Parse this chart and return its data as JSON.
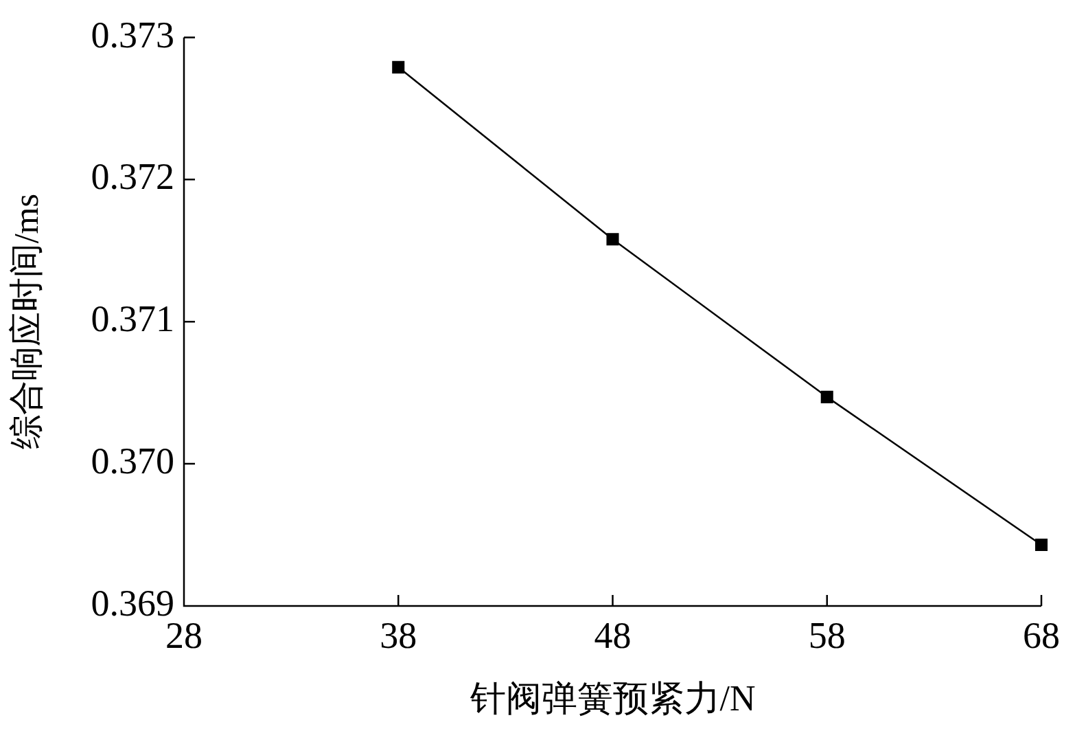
{
  "chart_data": {
    "type": "line",
    "xlabel": "针阀弹簧预紧力/N",
    "ylabel": "综合响应时间/ms",
    "x": [
      38,
      48,
      58,
      68
    ],
    "series": [
      {
        "color": "#000000",
        "values": [
          0.37279,
          0.37158,
          0.37047,
          0.36943
        ]
      }
    ],
    "xlim": [
      28,
      68
    ],
    "xticks": [
      28,
      38,
      48,
      58,
      68
    ],
    "ylim": [
      0.369,
      0.373
    ],
    "yticks": [
      0.369,
      {
        "value": 0.37,
        "label": "0.370"
      },
      0.371,
      0.372,
      0.373
    ],
    "grid": false,
    "legend": false,
    "marker": "square",
    "line_style": "solid"
  }
}
